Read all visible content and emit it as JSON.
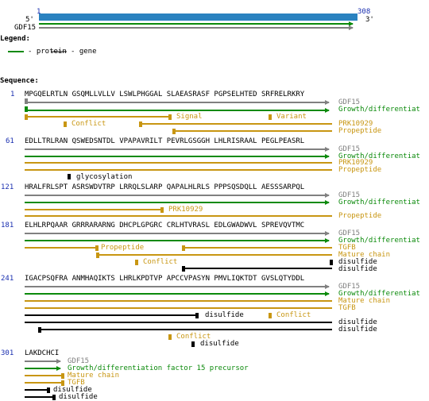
{
  "colors": {
    "seq_number": "#1a2fb0",
    "gene": "#808080",
    "protein": "#0b8a0b",
    "feature": "#c89612",
    "disulfide": "#000000",
    "scale_bar": "#2a82c0"
  },
  "overview": {
    "start": "1",
    "end": "308",
    "five_prime": "5'",
    "three_prime": "3'",
    "gene": "GDF15"
  },
  "legend": {
    "title": "Legend:",
    "protein": "- protein",
    "gene": "- gene"
  },
  "sequence_title": "Sequence:",
  "blocks": [
    {
      "number": "1",
      "residues": "MPGQELRTLN GSQMLLVLLV LSWLPHGGAL SLAEASRASF PGPSELHTED SRFRELRKRY",
      "labels": [
        {
          "text": "GDF15",
          "color": "gray"
        },
        {
          "text": "Growth/differentiat",
          "color": "green"
        },
        {
          "text": "Signal",
          "color": "gold"
        },
        {
          "text": "Variant",
          "color": "gold"
        },
        {
          "text": "Conflict",
          "color": "gold"
        },
        {
          "text": "PRK10929",
          "color": "gold"
        },
        {
          "text": "Propeptide",
          "color": "gold"
        }
      ]
    },
    {
      "number": "61",
      "residues": "EDLLTRLRAN QSWEDSNTDL VPAPAVRILT PEVRLGSGGH LHLRISRAAL PEGLPEASRL",
      "labels": [
        {
          "text": "GDF15",
          "color": "gray"
        },
        {
          "text": "Growth/differentiat",
          "color": "green"
        },
        {
          "text": "PRK10929",
          "color": "gold"
        },
        {
          "text": "Propeptide",
          "color": "gold"
        },
        {
          "text": "glycosylation",
          "color": "black"
        }
      ]
    },
    {
      "number": "121",
      "residues": "HRALFRLSPT ASRSWDVTRP LRRQLSLARP QAPALHLRLS PPPSQSDQLL AESSSARPQL",
      "labels": [
        {
          "text": "GDF15",
          "color": "gray"
        },
        {
          "text": "Growth/differentiat",
          "color": "green"
        },
        {
          "text": "PRK10929",
          "color": "gold"
        },
        {
          "text": "Propeptide",
          "color": "gold"
        }
      ]
    },
    {
      "number": "181",
      "residues": "ELHLRPQAAR GRRRARARNG DHCPLGPGRC CRLHTVRASL EDLGWADWVL SPREVQVTMC",
      "labels": [
        {
          "text": "GDF15",
          "color": "gray"
        },
        {
          "text": "Growth/differentiat",
          "color": "green"
        },
        {
          "text": "Propeptide",
          "color": "gold"
        },
        {
          "text": "TGFB",
          "color": "gold"
        },
        {
          "text": "Mature chain",
          "color": "gold"
        },
        {
          "text": "Conflict",
          "color": "gold"
        },
        {
          "text": "disulfide",
          "color": "black"
        },
        {
          "text": "disulfide",
          "color": "black"
        }
      ]
    },
    {
      "number": "241",
      "residues": "IGACPSQFRA ANMHAQIKTS LHRLKPDTVP APCCVPASYN PMVLIQKTDT GVSLQTYDDL",
      "labels": [
        {
          "text": "GDF15",
          "color": "gray"
        },
        {
          "text": "Growth/differentiat",
          "color": "green"
        },
        {
          "text": "Mature chain",
          "color": "gold"
        },
        {
          "text": "TGFB",
          "color": "gold"
        },
        {
          "text": "disulfide",
          "color": "black"
        },
        {
          "text": "Conflict",
          "color": "gold"
        },
        {
          "text": "disulfide",
          "color": "black"
        },
        {
          "text": "disulfide",
          "color": "black"
        },
        {
          "text": "Conflict",
          "color": "gold"
        },
        {
          "text": "disulfide",
          "color": "black"
        }
      ]
    },
    {
      "number": "301",
      "residues": "LAKDCHCI",
      "labels": [
        {
          "text": "GDF15",
          "color": "gray"
        },
        {
          "text": "Growth/differentiation factor 15 precursor",
          "color": "green"
        },
        {
          "text": "Mature chain",
          "color": "gold"
        },
        {
          "text": "TGFB",
          "color": "gold"
        },
        {
          "text": "disulfide",
          "color": "black"
        },
        {
          "text": "disulfide",
          "color": "black"
        }
      ]
    }
  ]
}
